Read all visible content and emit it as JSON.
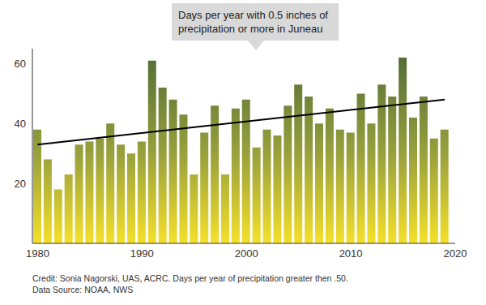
{
  "chart_data": {
    "type": "bar",
    "annotation": "Days per year with 0.5 inches of precipitation or more in Juneau",
    "caption": [
      "Credit: Sonia Nagorski, UAS, ACRC. Days per year of precipitation greater then .50.",
      "Data Source: NOAA, NWS"
    ],
    "x": [
      1980,
      1981,
      1982,
      1983,
      1984,
      1985,
      1986,
      1987,
      1988,
      1989,
      1990,
      1991,
      1992,
      1993,
      1994,
      1995,
      1996,
      1997,
      1998,
      1999,
      2000,
      2001,
      2002,
      2003,
      2004,
      2005,
      2006,
      2007,
      2008,
      2009,
      2010,
      2011,
      2012,
      2013,
      2014,
      2015,
      2016,
      2017,
      2018,
      2019
    ],
    "values": [
      38,
      28,
      18,
      23,
      33,
      34,
      35,
      40,
      33,
      30,
      34,
      61,
      52,
      48,
      43,
      23,
      37,
      46,
      23,
      45,
      48,
      32,
      38,
      36,
      46,
      53,
      49,
      40,
      45,
      38,
      37,
      50,
      40,
      53,
      49,
      62,
      42,
      49,
      35,
      38
    ],
    "color": "#4f6a36",
    "trend_line": {
      "x": [
        1980,
        2019
      ],
      "values": [
        33,
        48
      ],
      "color": "#000000"
    },
    "xlim": [
      1979.5,
      2020
    ],
    "xticks": [
      1980,
      1990,
      2000,
      2010,
      2020
    ],
    "ylim": [
      0,
      65
    ],
    "yticks": [
      20,
      40,
      60
    ],
    "grid": false
  }
}
